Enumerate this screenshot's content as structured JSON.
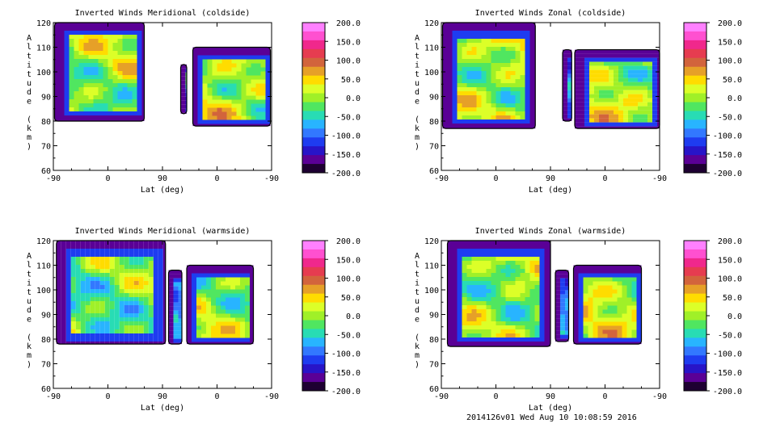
{
  "footer": "2014126v01 Wed Aug 10 10:08:59 2016",
  "colorbar": {
    "ticks": [
      "200.0",
      "150.0",
      "100.0",
      "50.0",
      "0.0",
      "-50.0",
      "-100.0",
      "-150.0",
      "-200.0"
    ],
    "colors": [
      "#ff80ff",
      "#ff50d0",
      "#f0288c",
      "#e63c50",
      "#d2643c",
      "#e6a028",
      "#ffdc00",
      "#dcff28",
      "#a0f028",
      "#50e660",
      "#28dcb4",
      "#28b4ff",
      "#3278ff",
      "#1e3cf0",
      "#2814c8",
      "#5a0096",
      "#1e0032"
    ]
  },
  "chart_data": [
    {
      "type": "heatmap",
      "title": "Inverted Winds Meridional (coldside)",
      "xlabel": "Lat (deg)",
      "ylabel": "Altitude (km)",
      "xticks": [
        "-90",
        "0",
        "90",
        "0",
        "-90"
      ],
      "yticks": [
        "60",
        "70",
        "80",
        "90",
        "100",
        "110",
        "120"
      ],
      "ylim": [
        60,
        120
      ],
      "zlim": [
        -200,
        200
      ],
      "regions": [
        {
          "x": [
            -88,
            60
          ],
          "y": [
            80,
            120
          ],
          "mean": 0
        },
        {
          "x": [
            120,
            130
          ],
          "y": [
            83,
            103
          ],
          "mean": -60
        },
        {
          "x": [
            140,
            268
          ],
          "y": [
            78,
            110
          ],
          "mean": 20
        }
      ]
    },
    {
      "type": "heatmap",
      "title": "Inverted Winds Zonal (coldside)",
      "xlabel": "Lat (deg)",
      "ylabel": "Altitude (km)",
      "xticks": [
        "-90",
        "0",
        "90",
        "0",
        "-90"
      ],
      "yticks": [
        "60",
        "70",
        "80",
        "90",
        "100",
        "110",
        "120"
      ],
      "ylim": [
        60,
        120
      ],
      "zlim": [
        -200,
        200
      ],
      "regions": [
        {
          "x": [
            -88,
            65
          ],
          "y": [
            77,
            120
          ],
          "mean": 10
        },
        {
          "x": [
            110,
            125
          ],
          "y": [
            80,
            109
          ],
          "mean": -70
        },
        {
          "x": [
            130,
            270
          ],
          "y": [
            77,
            109
          ],
          "mean": 10
        }
      ]
    },
    {
      "type": "heatmap",
      "title": "Inverted Winds Meridional (warmside)",
      "xlabel": "Lat (deg)",
      "ylabel": "Altitude (km)",
      "xticks": [
        "-90",
        "0",
        "90",
        "0",
        "-90"
      ],
      "yticks": [
        "60",
        "70",
        "80",
        "90",
        "100",
        "110",
        "120"
      ],
      "ylim": [
        60,
        120
      ],
      "zlim": [
        -200,
        200
      ],
      "regions": [
        {
          "x": [
            -85,
            95
          ],
          "y": [
            78,
            120
          ],
          "mean": -20
        },
        {
          "x": [
            100,
            122
          ],
          "y": [
            78,
            108
          ],
          "mean": -60
        },
        {
          "x": [
            130,
            240
          ],
          "y": [
            78,
            110
          ],
          "mean": 0
        }
      ]
    },
    {
      "type": "heatmap",
      "title": "Inverted Winds Zonal (warmside)",
      "xlabel": "Lat (deg)",
      "ylabel": "Altitude (km)",
      "xticks": [
        "-90",
        "0",
        "90",
        "0",
        "-90"
      ],
      "yticks": [
        "60",
        "70",
        "80",
        "90",
        "100",
        "110",
        "120"
      ],
      "ylim": [
        60,
        120
      ],
      "zlim": [
        -200,
        200
      ],
      "regions": [
        {
          "x": [
            -80,
            90
          ],
          "y": [
            77,
            120
          ],
          "mean": 0
        },
        {
          "x": [
            98,
            120
          ],
          "y": [
            79,
            108
          ],
          "mean": -80
        },
        {
          "x": [
            128,
            240
          ],
          "y": [
            78,
            110
          ],
          "mean": 10
        }
      ]
    }
  ]
}
